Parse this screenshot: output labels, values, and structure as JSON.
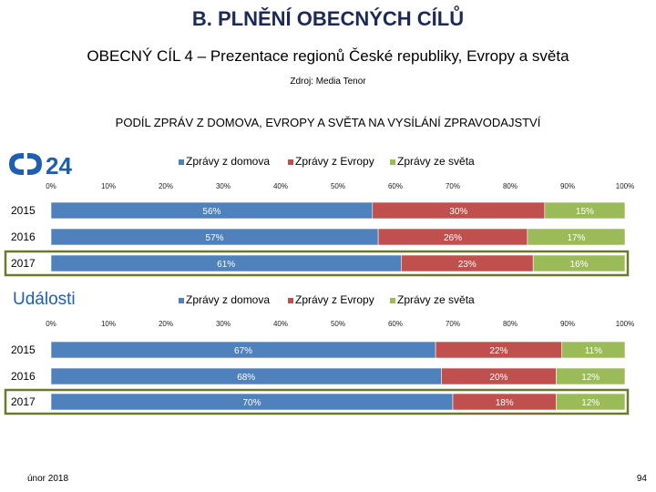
{
  "title": "B. PLNĚNÍ OBECNÝCH CÍLŮ",
  "subtitle": "OBECNÝ CÍL 4 – Prezentace regionů České republiky, Evropy a světa",
  "source": "Zdroj: Media Tenor",
  "heading": "PODÍL ZPRÁV Z DOMOVA, EVROPY A SVĚTA NA VYSÍLÁNÍ ZPRAVODAJSTVÍ",
  "footer": {
    "date": "únor 2018",
    "page": "94"
  },
  "colors": {
    "domov": "#4f81bd",
    "evropa": "#c0504d",
    "svet": "#9bbb59",
    "highlight": "#6a7a2a"
  },
  "chart_data": [
    {
      "type": "bar",
      "orientation": "horizontal",
      "stacked": true,
      "logo": {
        "text": "24",
        "icon": "ct24-logo-icon"
      },
      "categories": [
        "2015",
        "2016",
        "2017"
      ],
      "series": [
        {
          "name": "Zprávy z domova",
          "values": [
            56,
            57,
            61
          ],
          "labels": [
            "56%",
            "57%",
            "61%"
          ]
        },
        {
          "name": "Zprávy z Evropy",
          "values": [
            30,
            26,
            23
          ],
          "labels": [
            "30%",
            "26%",
            "23%"
          ]
        },
        {
          "name": "Zprávy ze světa",
          "values": [
            15,
            17,
            16
          ],
          "labels": [
            "15%",
            "17%",
            "16%"
          ]
        }
      ],
      "xticks": [
        "0%",
        "10%",
        "20%",
        "30%",
        "40%",
        "50%",
        "60%",
        "70%",
        "80%",
        "90%",
        "100%"
      ],
      "xlim": [
        0,
        100
      ],
      "legend_position": "top",
      "highlighted_category": "2017"
    },
    {
      "type": "bar",
      "orientation": "horizontal",
      "stacked": true,
      "logo": {
        "text": "Události",
        "icon": "udalosti-logo-icon"
      },
      "categories": [
        "2015",
        "2016",
        "2017"
      ],
      "series": [
        {
          "name": "Zprávy z domova",
          "values": [
            67,
            68,
            70
          ],
          "labels": [
            "67%",
            "68%",
            "70%"
          ]
        },
        {
          "name": "Zprávy z Evropy",
          "values": [
            22,
            20,
            18
          ],
          "labels": [
            "22%",
            "20%",
            "18%"
          ]
        },
        {
          "name": "Zprávy ze světa",
          "values": [
            11,
            12,
            12
          ],
          "labels": [
            "11%",
            "12%",
            "12%"
          ]
        }
      ],
      "xticks": [
        "0%",
        "10%",
        "20%",
        "30%",
        "40%",
        "50%",
        "60%",
        "70%",
        "80%",
        "90%",
        "100%"
      ],
      "xlim": [
        0,
        100
      ],
      "legend_position": "top",
      "highlighted_category": "2017"
    }
  ]
}
